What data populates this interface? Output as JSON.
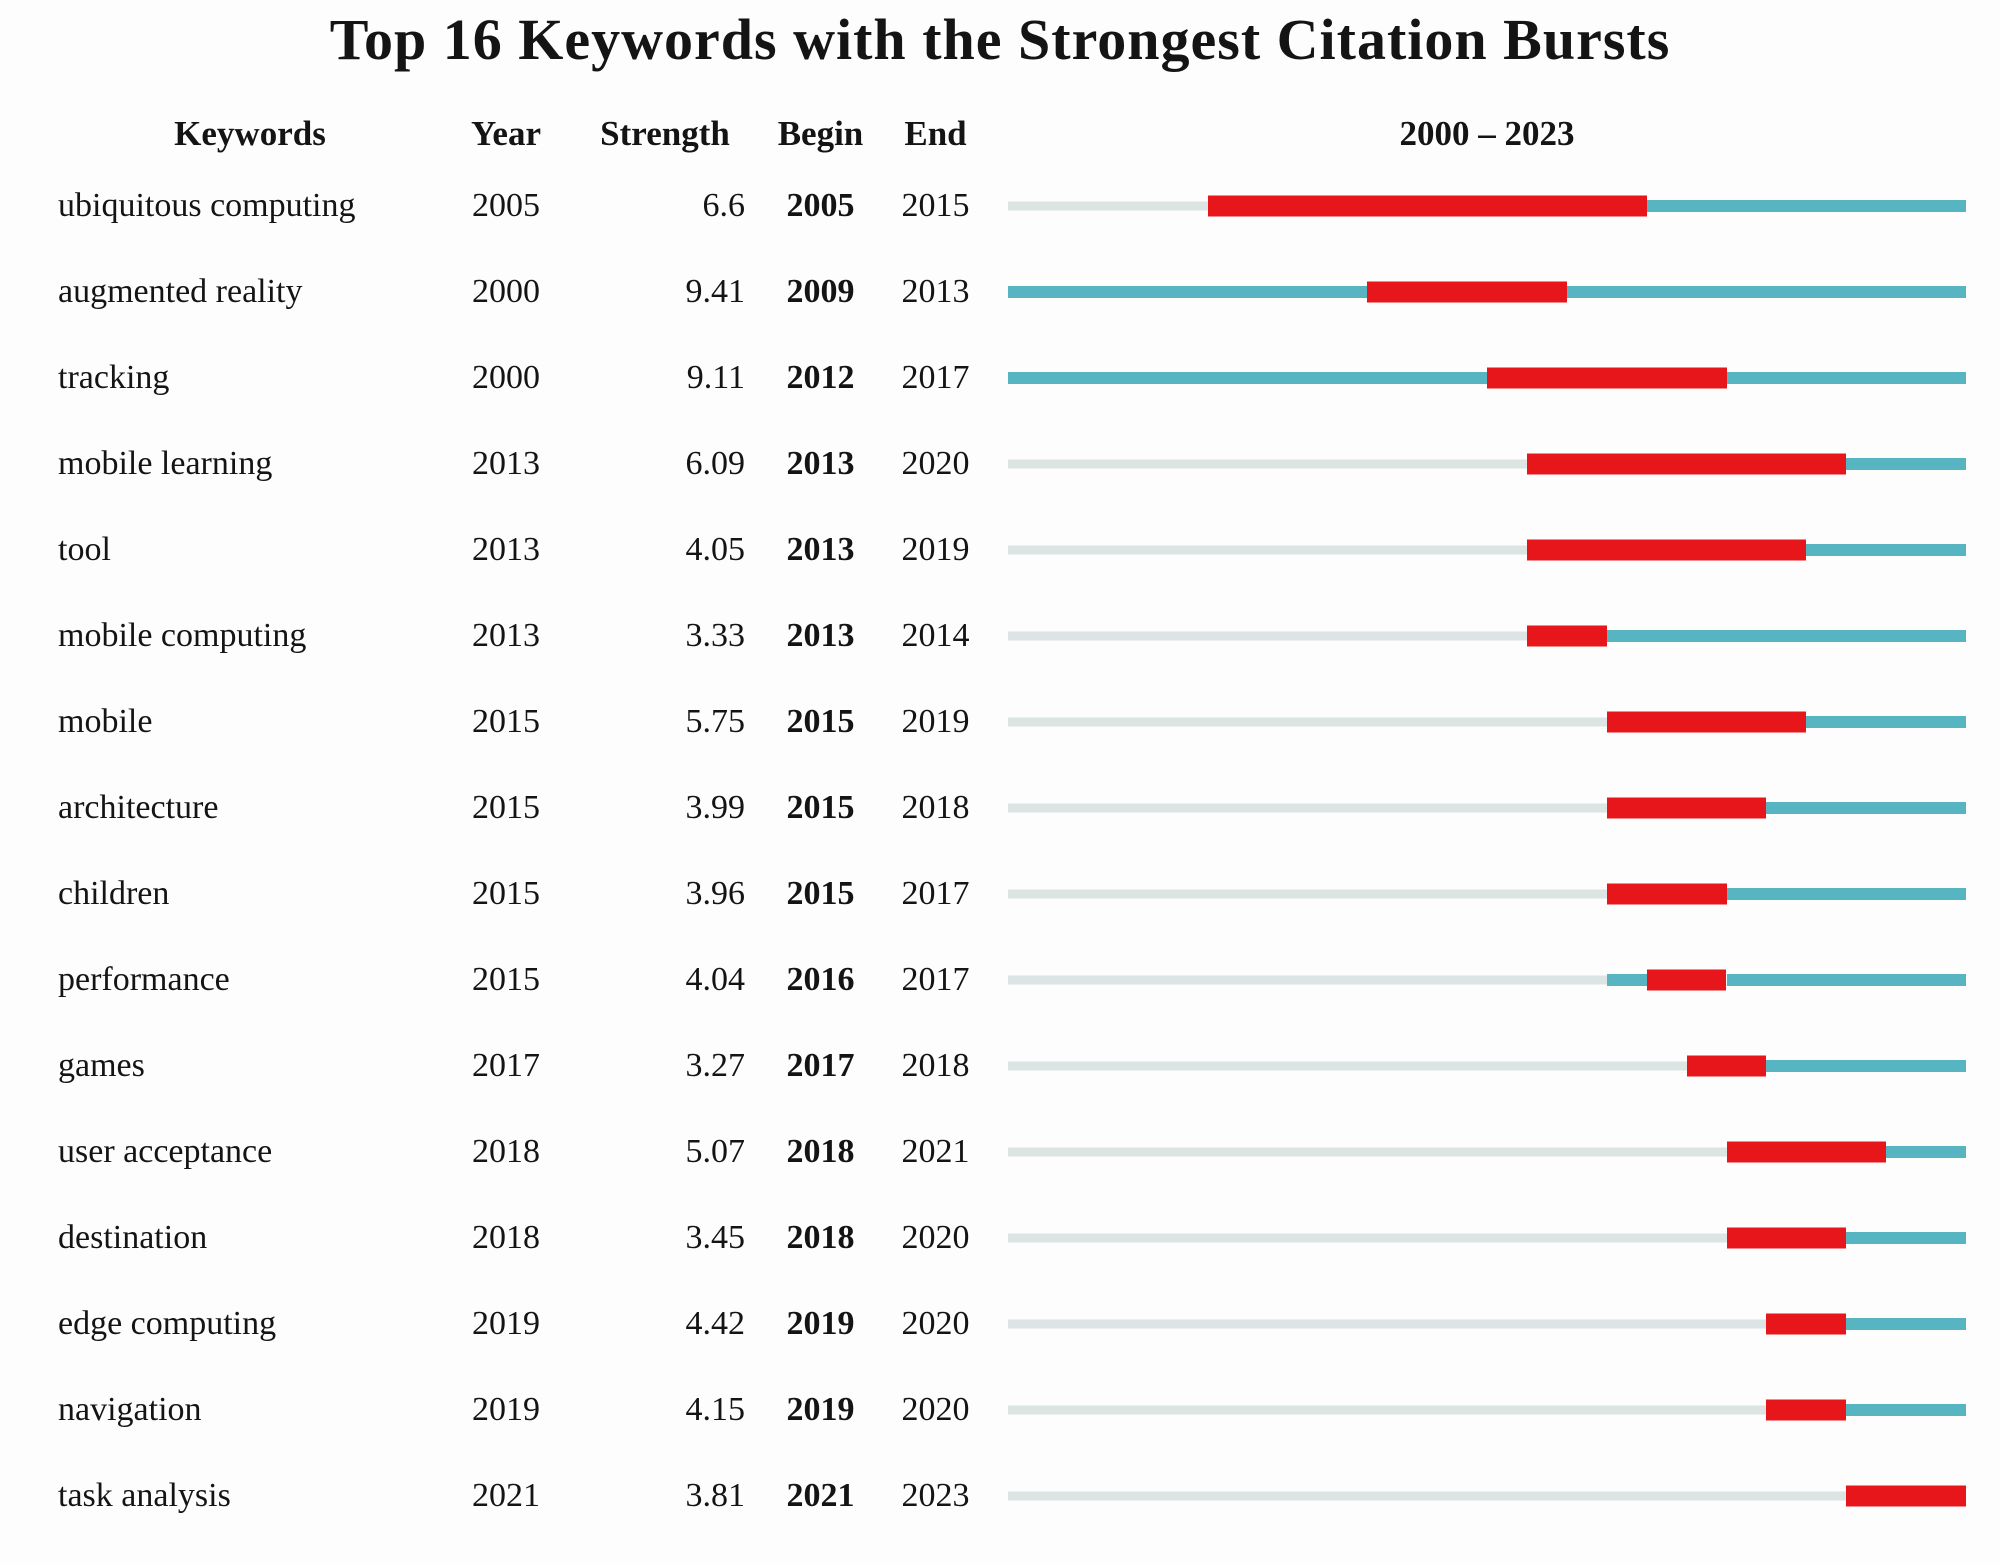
{
  "title": "Top 16 Keywords with the Strongest Citation Bursts",
  "columns": {
    "keywords": "Keywords",
    "year": "Year",
    "strength": "Strength",
    "begin": "Begin",
    "end": "End",
    "timeline": "2000 – 2023"
  },
  "colors": {
    "burst": "#e7161b",
    "active": "#57b4c1",
    "inactive": "#dce5e4",
    "text": "#141414",
    "background": "#fdfdfd"
  },
  "chart_data": {
    "type": "bar",
    "title": "Top 16 Keywords with the Strongest Citation Bursts",
    "xlabel": "Year",
    "x_range": [
      2000,
      2023
    ],
    "legend": [
      "burst period (red)",
      "active period (teal)",
      "before first appearance (gray)"
    ],
    "rows": [
      {
        "keyword": "ubiquitous computing",
        "year": 2005,
        "strength": 6.6,
        "begin": 2005,
        "end": 2015
      },
      {
        "keyword": "augmented reality",
        "year": 2000,
        "strength": 9.41,
        "begin": 2009,
        "end": 2013
      },
      {
        "keyword": "tracking",
        "year": 2000,
        "strength": 9.11,
        "begin": 2012,
        "end": 2017
      },
      {
        "keyword": "mobile learning",
        "year": 2013,
        "strength": 6.09,
        "begin": 2013,
        "end": 2020
      },
      {
        "keyword": "tool",
        "year": 2013,
        "strength": 4.05,
        "begin": 2013,
        "end": 2019
      },
      {
        "keyword": "mobile computing",
        "year": 2013,
        "strength": 3.33,
        "begin": 2013,
        "end": 2014
      },
      {
        "keyword": "mobile",
        "year": 2015,
        "strength": 5.75,
        "begin": 2015,
        "end": 2019
      },
      {
        "keyword": "architecture",
        "year": 2015,
        "strength": 3.99,
        "begin": 2015,
        "end": 2018
      },
      {
        "keyword": "children",
        "year": 2015,
        "strength": 3.96,
        "begin": 2015,
        "end": 2017
      },
      {
        "keyword": "performance",
        "year": 2015,
        "strength": 4.04,
        "begin": 2016,
        "end": 2017
      },
      {
        "keyword": "games",
        "year": 2017,
        "strength": 3.27,
        "begin": 2017,
        "end": 2018
      },
      {
        "keyword": "user acceptance",
        "year": 2018,
        "strength": 5.07,
        "begin": 2018,
        "end": 2021
      },
      {
        "keyword": "destination",
        "year": 2018,
        "strength": 3.45,
        "begin": 2018,
        "end": 2020
      },
      {
        "keyword": "edge computing",
        "year": 2019,
        "strength": 4.42,
        "begin": 2019,
        "end": 2020
      },
      {
        "keyword": "navigation",
        "year": 2019,
        "strength": 4.15,
        "begin": 2019,
        "end": 2020
      },
      {
        "keyword": "task analysis",
        "year": 2021,
        "strength": 3.81,
        "begin": 2021,
        "end": 2023
      }
    ]
  }
}
